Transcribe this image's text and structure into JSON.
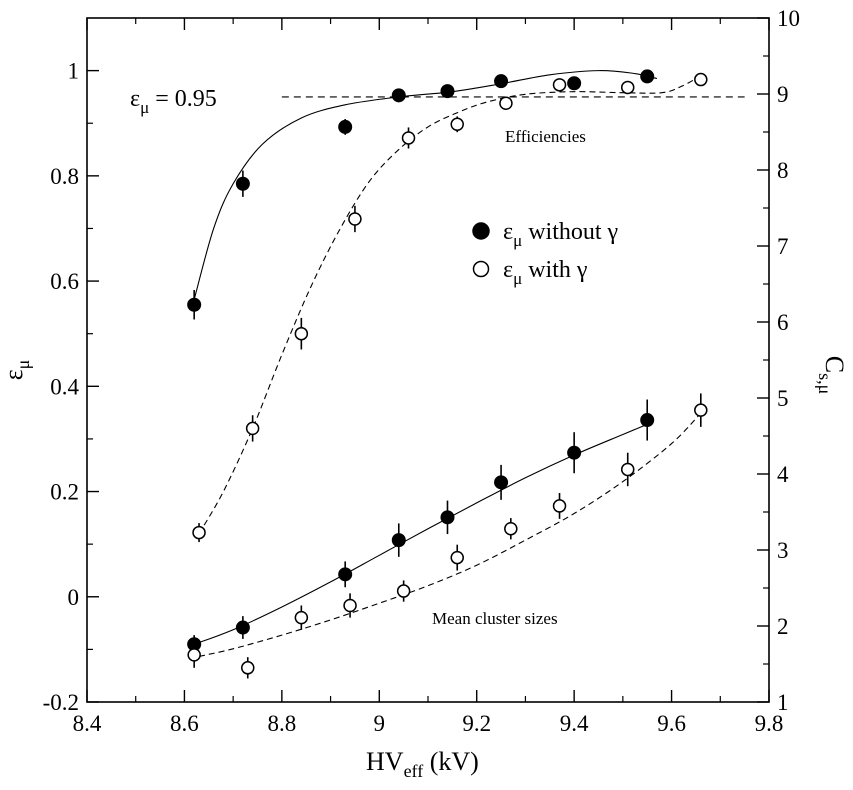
{
  "chart_data": {
    "type": "scatter",
    "title": "",
    "xlabel": {
      "main": "HV",
      "sub": "eff",
      "unit": " (kV)"
    },
    "ylabel": {
      "main": "ε",
      "sub": "μ"
    },
    "y2label": {
      "main": "C",
      "sub": "s,μ"
    },
    "xlim": [
      8.4,
      9.8
    ],
    "ylim": [
      -0.2,
      1.1
    ],
    "y2lim": [
      1,
      10
    ],
    "x_ticks": [
      "8.4",
      "8.6",
      "8.8",
      "9",
      "9.2",
      "9.4",
      "9.6",
      "9.8"
    ],
    "y_ticks": [
      "-0.2",
      "0",
      "0.2",
      "0.4",
      "0.6",
      "0.8",
      "1"
    ],
    "y2_ticks": [
      "1",
      "2",
      "3",
      "4",
      "5",
      "6",
      "7",
      "8",
      "9",
      "10"
    ],
    "legend": [
      {
        "name": "without_gamma",
        "prefix": "ε",
        "sub": "μ",
        "text": " without γ",
        "marker": "filled-circle"
      },
      {
        "name": "with_gamma",
        "prefix": "ε",
        "sub": "μ",
        "text": " with γ",
        "marker": "open-circle"
      }
    ],
    "reference_line": {
      "y": 0.95,
      "x_range": [
        8.8,
        9.75
      ],
      "label_prefix": "ε",
      "label_sub": "μ",
      "label_text": " = 0.95"
    },
    "annotations": {
      "efficiencies": "Efficiencies",
      "cluster_sizes": "Mean cluster sizes"
    },
    "series": [
      {
        "name": "efficiency_without_gamma",
        "axis": "left",
        "marker": "filled",
        "fit": "solid",
        "x": [
          8.62,
          8.72,
          8.93,
          9.04,
          9.14,
          9.25,
          9.4,
          9.55
        ],
        "y": [
          0.555,
          0.785,
          0.893,
          0.953,
          0.961,
          0.98,
          0.976,
          0.989
        ],
        "err": [
          0.028,
          0.025,
          0.015,
          0.012,
          0.01,
          0.009,
          0.01,
          0.009
        ],
        "fit_x": [
          8.62,
          8.66,
          8.7,
          8.76,
          8.84,
          8.93,
          9.04,
          9.15,
          9.25,
          9.35,
          9.45,
          9.52,
          9.57
        ],
        "fit_y": [
          0.565,
          0.7,
          0.785,
          0.86,
          0.91,
          0.935,
          0.95,
          0.96,
          0.975,
          0.992,
          1.0,
          0.995,
          0.985
        ]
      },
      {
        "name": "efficiency_with_gamma",
        "axis": "left",
        "marker": "open",
        "fit": "dashed",
        "x": [
          8.63,
          8.74,
          8.84,
          8.95,
          9.06,
          9.16,
          9.26,
          9.37,
          9.51,
          9.66
        ],
        "y": [
          0.122,
          0.32,
          0.5,
          0.718,
          0.872,
          0.898,
          0.938,
          0.973,
          0.968,
          0.983
        ],
        "err": [
          0.018,
          0.025,
          0.03,
          0.025,
          0.02,
          0.015,
          0.012,
          0.01,
          0.01,
          0.01
        ],
        "fit_x": [
          8.63,
          8.68,
          8.74,
          8.8,
          8.86,
          8.92,
          8.98,
          9.04,
          9.1,
          9.16,
          9.22,
          9.3,
          9.4,
          9.5,
          9.58,
          9.62,
          9.66
        ],
        "fit_y": [
          0.12,
          0.2,
          0.32,
          0.46,
          0.59,
          0.7,
          0.79,
          0.85,
          0.893,
          0.92,
          0.94,
          0.955,
          0.96,
          0.958,
          0.958,
          0.97,
          0.99
        ]
      },
      {
        "name": "cluster_size_without_gamma",
        "axis": "right",
        "marker": "filled",
        "fit": "solid",
        "x": [
          8.62,
          8.72,
          8.93,
          9.04,
          9.14,
          9.25,
          9.4,
          9.55
        ],
        "y": [
          1.76,
          1.98,
          2.68,
          3.13,
          3.43,
          3.89,
          4.28,
          4.71
        ],
        "err": [
          0.12,
          0.15,
          0.17,
          0.22,
          0.22,
          0.23,
          0.27,
          0.27
        ],
        "fit_x": [
          8.62,
          8.7,
          8.8,
          8.9,
          9.0,
          9.1,
          9.2,
          9.3,
          9.4,
          9.5,
          9.56
        ],
        "fit_y": [
          1.76,
          1.95,
          2.25,
          2.58,
          2.93,
          3.28,
          3.62,
          3.95,
          4.25,
          4.52,
          4.68
        ]
      },
      {
        "name": "cluster_size_with_gamma",
        "axis": "right",
        "marker": "open",
        "fit": "dashed",
        "x": [
          8.62,
          8.73,
          8.84,
          8.94,
          9.05,
          9.16,
          9.27,
          9.37,
          9.51,
          9.66
        ],
        "y": [
          1.62,
          1.45,
          2.11,
          2.27,
          2.46,
          2.9,
          3.28,
          3.58,
          4.06,
          4.84
        ],
        "err": [
          0.17,
          0.14,
          0.16,
          0.16,
          0.14,
          0.17,
          0.14,
          0.17,
          0.22,
          0.22
        ],
        "fit_x": [
          8.63,
          8.7,
          8.8,
          8.9,
          9.0,
          9.1,
          9.2,
          9.3,
          9.4,
          9.5,
          9.6,
          9.66
        ],
        "fit_y": [
          1.6,
          1.7,
          1.88,
          2.08,
          2.3,
          2.53,
          2.8,
          3.13,
          3.48,
          3.9,
          4.4,
          4.8
        ]
      }
    ]
  }
}
